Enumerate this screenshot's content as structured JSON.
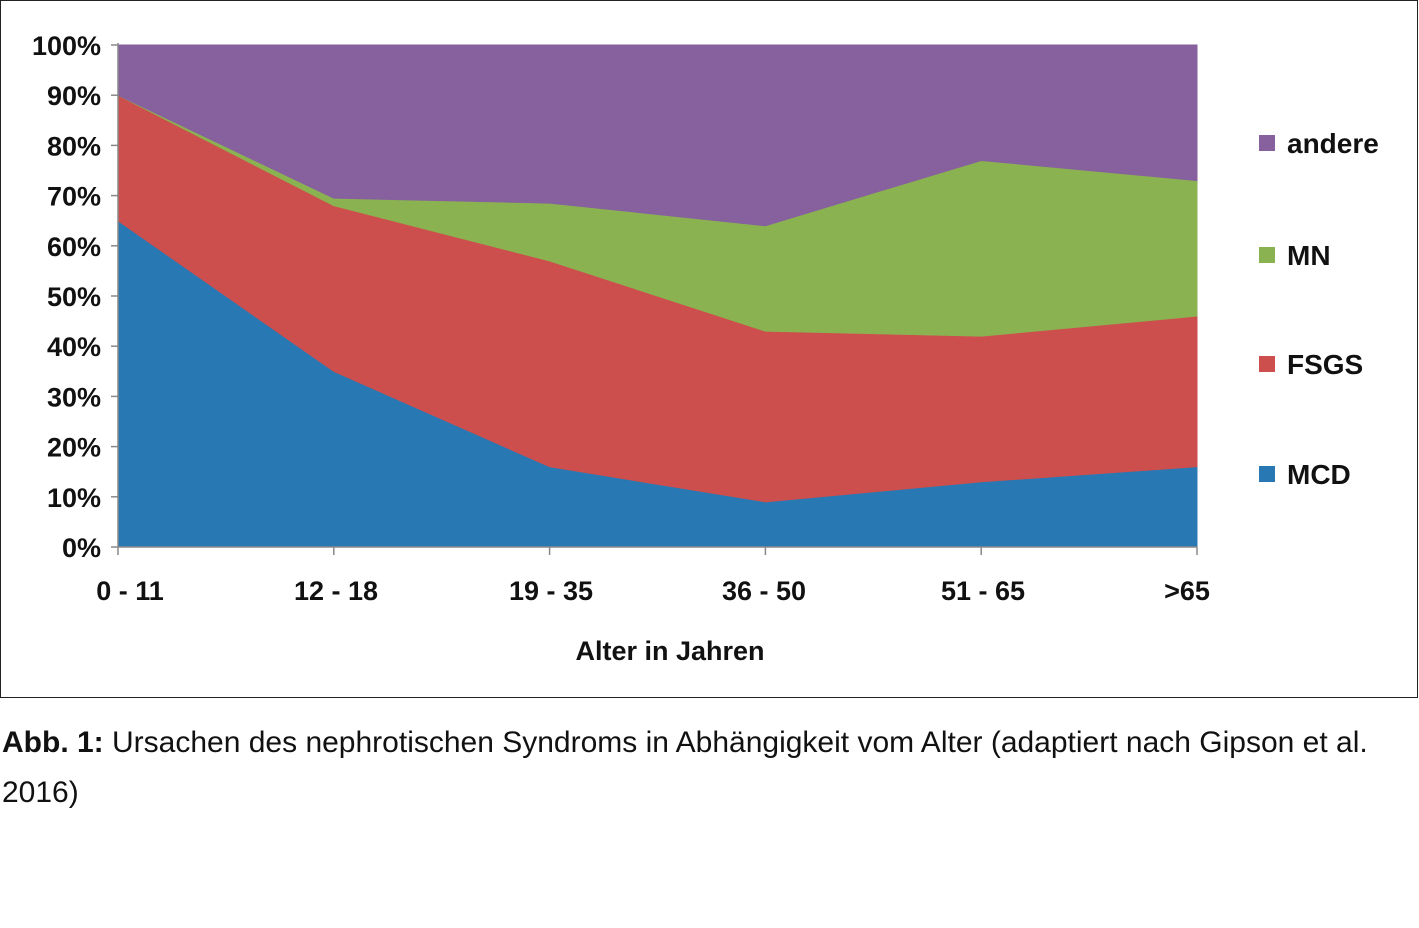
{
  "chart_data": {
    "type": "area",
    "stacked": true,
    "percent_stacked": true,
    "categories": [
      "0 - 11",
      "12 - 18",
      "19 - 35",
      "36 - 50",
      "51 - 65",
      ">65"
    ],
    "series": [
      {
        "name": "MCD",
        "color": "#2878b4",
        "values": [
          65,
          35,
          16,
          9,
          13,
          16
        ]
      },
      {
        "name": "FSGS",
        "color": "#cd4f4d",
        "values": [
          25,
          33,
          41,
          34,
          29,
          30
        ]
      },
      {
        "name": "MN",
        "color": "#8bb251",
        "values": [
          0,
          1.5,
          11.5,
          21,
          35,
          27
        ]
      },
      {
        "name": "andere",
        "color": "#86619e",
        "values": [
          10,
          30.5,
          31.5,
          36,
          23,
          27
        ]
      }
    ],
    "yticks": [
      "0%",
      "10%",
      "20%",
      "30%",
      "40%",
      "50%",
      "60%",
      "70%",
      "80%",
      "90%",
      "100%"
    ],
    "ylim": [
      0,
      100
    ],
    "xlabel": "Alter in Jahren",
    "ylabel": "",
    "legend_position": "right",
    "grid": false
  },
  "caption": {
    "label": "Abb. 1:",
    "text": " Ursachen des nephrotischen Syndroms in Abhängigkeit vom Alter (adaptiert nach Gipson et al. 2016)"
  }
}
